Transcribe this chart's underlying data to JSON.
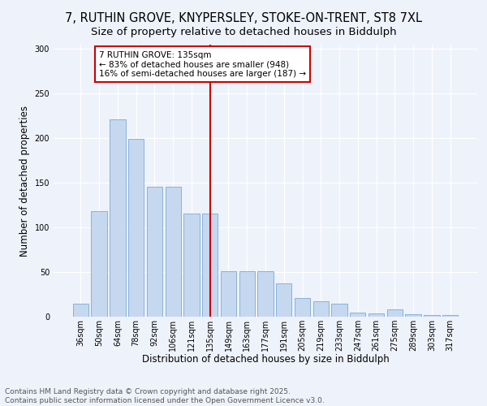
{
  "title": "7, RUTHIN GROVE, KNYPERSLEY, STOKE-ON-TRENT, ST8 7XL",
  "subtitle": "Size of property relative to detached houses in Biddulph",
  "xlabel": "Distribution of detached houses by size in Biddulph",
  "ylabel": "Number of detached properties",
  "categories": [
    "36sqm",
    "50sqm",
    "64sqm",
    "78sqm",
    "92sqm",
    "106sqm",
    "121sqm",
    "135sqm",
    "149sqm",
    "163sqm",
    "177sqm",
    "191sqm",
    "205sqm",
    "219sqm",
    "233sqm",
    "247sqm",
    "261sqm",
    "275sqm",
    "289sqm",
    "303sqm",
    "317sqm"
  ],
  "values": [
    15,
    118,
    221,
    199,
    146,
    146,
    116,
    116,
    51,
    51,
    51,
    37,
    21,
    17,
    15,
    5,
    4,
    8,
    3,
    2,
    2
  ],
  "bar_color": "#c5d8f0",
  "bar_edge_color": "#7aaad4",
  "vline_x_index": 7,
  "annotation_title": "7 RUTHIN GROVE: 135sqm",
  "annotation_line1": "← 83% of detached houses are smaller (948)",
  "annotation_line2": "16% of semi-detached houses are larger (187) →",
  "annotation_box_facecolor": "#ffffff",
  "annotation_box_edgecolor": "#cc0000",
  "vline_color": "#cc0000",
  "footer_line1": "Contains HM Land Registry data © Crown copyright and database right 2025.",
  "footer_line2": "Contains public sector information licensed under the Open Government Licence v3.0.",
  "bg_color": "#eef2fb",
  "plot_bg_color": "#eef2fb",
  "ylim": [
    0,
    305
  ],
  "yticks": [
    0,
    50,
    100,
    150,
    200,
    250,
    300
  ],
  "title_fontsize": 10.5,
  "subtitle_fontsize": 9.5,
  "ylabel_fontsize": 8.5,
  "xlabel_fontsize": 8.5,
  "tick_fontsize": 7,
  "annot_fontsize": 7.5,
  "footer_fontsize": 6.5
}
